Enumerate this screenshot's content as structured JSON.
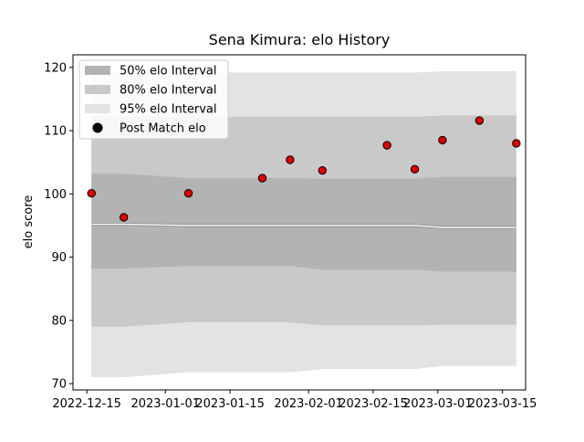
{
  "chart_data": {
    "type": "scatter",
    "title": "Sena Kimura: elo History",
    "xlabel": "",
    "ylabel": "elo score",
    "xlim": [
      "2022-12-12",
      "2023-03-20"
    ],
    "ylim": [
      69,
      122
    ],
    "x_ticks": [
      "2022-12-15",
      "2023-01-01",
      "2023-01-15",
      "2023-02-01",
      "2023-02-15",
      "2023-03-01",
      "2023-03-15"
    ],
    "y_ticks": [
      70,
      80,
      90,
      100,
      110,
      120
    ],
    "grid": false,
    "legend_position": "upper-left",
    "colors": {
      "band_50": "#b3b3b3",
      "band_80": "#c9c9c9",
      "band_95": "#e3e3e3",
      "mean_line": "#ffffff",
      "points_fill": "#dd0000",
      "points_edge": "#000000"
    },
    "legend": [
      {
        "label": "50% elo Interval",
        "kind": "band_50"
      },
      {
        "label": "80% elo Interval",
        "kind": "band_80"
      },
      {
        "label": "95% elo Interval",
        "kind": "band_95"
      },
      {
        "label": "Post Match elo",
        "kind": "marker"
      }
    ],
    "bands": [
      {
        "date": "2022-12-16",
        "mean": 95.2,
        "lo50": 88.2,
        "hi50": 103.2,
        "lo80": 79.0,
        "hi80": 112.2,
        "lo95": 71.0,
        "hi95": 119.2
      },
      {
        "date": "2022-12-23",
        "mean": 95.2,
        "lo50": 88.2,
        "hi50": 103.2,
        "lo80": 79.0,
        "hi80": 112.2,
        "lo95": 71.0,
        "hi95": 119.2
      },
      {
        "date": "2023-01-06",
        "mean": 95.0,
        "lo50": 88.6,
        "hi50": 102.5,
        "lo80": 79.7,
        "hi80": 112.2,
        "lo95": 71.8,
        "hi95": 119.2
      },
      {
        "date": "2023-01-22",
        "mean": 95.0,
        "lo50": 88.6,
        "hi50": 102.5,
        "lo80": 79.7,
        "hi80": 112.2,
        "lo95": 71.8,
        "hi95": 119.2
      },
      {
        "date": "2023-01-28",
        "mean": 95.0,
        "lo50": 88.6,
        "hi50": 102.5,
        "lo80": 79.7,
        "hi80": 112.2,
        "lo95": 71.8,
        "hi95": 119.2
      },
      {
        "date": "2023-02-04",
        "mean": 95.0,
        "lo50": 88.0,
        "hi50": 102.4,
        "lo80": 79.2,
        "hi80": 112.2,
        "lo95": 72.3,
        "hi95": 119.2
      },
      {
        "date": "2023-02-18",
        "mean": 95.0,
        "lo50": 88.0,
        "hi50": 102.4,
        "lo80": 79.2,
        "hi80": 112.2,
        "lo95": 72.3,
        "hi95": 119.2
      },
      {
        "date": "2023-02-24",
        "mean": 95.0,
        "lo50": 88.0,
        "hi50": 102.4,
        "lo80": 79.2,
        "hi80": 112.2,
        "lo95": 72.3,
        "hi95": 119.2
      },
      {
        "date": "2023-03-02",
        "mean": 94.7,
        "lo50": 87.7,
        "hi50": 102.7,
        "lo80": 79.3,
        "hi80": 112.4,
        "lo95": 72.8,
        "hi95": 119.4
      },
      {
        "date": "2023-03-10",
        "mean": 94.7,
        "lo50": 87.7,
        "hi50": 102.7,
        "lo80": 79.3,
        "hi80": 112.4,
        "lo95": 72.8,
        "hi95": 119.4
      },
      {
        "date": "2023-03-18",
        "mean": 94.7,
        "lo50": 87.7,
        "hi50": 102.7,
        "lo80": 79.3,
        "hi80": 112.4,
        "lo95": 72.8,
        "hi95": 119.4
      }
    ],
    "points": [
      {
        "date": "2022-12-16",
        "elo": 100.1
      },
      {
        "date": "2022-12-23",
        "elo": 96.3
      },
      {
        "date": "2023-01-06",
        "elo": 100.1
      },
      {
        "date": "2023-01-22",
        "elo": 102.5
      },
      {
        "date": "2023-01-28",
        "elo": 105.4
      },
      {
        "date": "2023-02-04",
        "elo": 103.7
      },
      {
        "date": "2023-02-18",
        "elo": 107.7
      },
      {
        "date": "2023-02-24",
        "elo": 103.9
      },
      {
        "date": "2023-03-02",
        "elo": 108.5
      },
      {
        "date": "2023-03-10",
        "elo": 111.6
      },
      {
        "date": "2023-03-18",
        "elo": 108.0
      }
    ]
  }
}
